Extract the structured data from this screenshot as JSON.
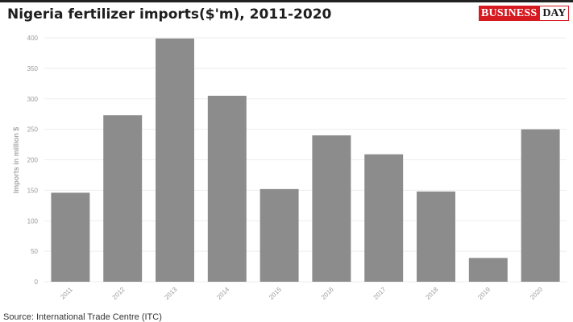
{
  "header": {
    "title": "Nigeria fertilizer imports($'m), 2011-2020",
    "logo_part_a": "BUSINESS",
    "logo_part_b": "DAY"
  },
  "footer": {
    "source": "Source: International Trade Centre (ITC)"
  },
  "colors": {
    "bar": "#8c8c8c",
    "grid": "#eeeeee",
    "logo_red": "#d71920"
  },
  "chart_data": {
    "type": "bar",
    "title": "Nigeria fertilizer imports($'m), 2011-2020",
    "xlabel": "",
    "ylabel": "Imports in million $",
    "categories": [
      "2011",
      "2012",
      "2013",
      "2014",
      "2015",
      "2016",
      "2017",
      "2018",
      "2019",
      "2020"
    ],
    "values": [
      146,
      273,
      399,
      305,
      152,
      240,
      209,
      148,
      39,
      250
    ],
    "ylim": [
      0,
      400
    ],
    "yticks": [
      0,
      50,
      100,
      150,
      200,
      250,
      300,
      350,
      400
    ],
    "grid": true,
    "legend": "none"
  }
}
